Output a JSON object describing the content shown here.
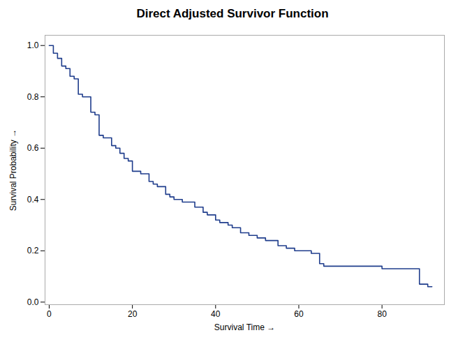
{
  "chart_data": {
    "type": "step",
    "title": "Direct Adjusted Survivor Function",
    "xlabel": "Survival Time",
    "ylabel": "Survival Probability",
    "color": "#1f3d8c",
    "x": [
      0,
      1,
      2,
      3,
      4,
      5,
      6,
      7,
      8,
      10,
      11,
      12,
      13,
      15,
      16,
      17,
      18,
      19,
      20,
      22,
      24,
      25,
      26,
      28,
      29,
      30,
      32,
      35,
      37,
      38,
      40,
      41,
      43,
      44,
      46,
      48,
      50,
      52,
      55,
      57,
      59,
      61,
      63,
      65,
      66,
      70,
      71,
      75,
      80,
      88,
      89,
      91,
      92
    ],
    "values": [
      1.0,
      0.97,
      0.95,
      0.92,
      0.91,
      0.88,
      0.87,
      0.81,
      0.8,
      0.74,
      0.73,
      0.65,
      0.64,
      0.61,
      0.6,
      0.58,
      0.56,
      0.55,
      0.51,
      0.5,
      0.47,
      0.46,
      0.45,
      0.42,
      0.41,
      0.4,
      0.39,
      0.37,
      0.35,
      0.34,
      0.32,
      0.31,
      0.3,
      0.29,
      0.27,
      0.26,
      0.25,
      0.24,
      0.22,
      0.21,
      0.2,
      0.2,
      0.19,
      0.15,
      0.14,
      0.14,
      0.14,
      0.14,
      0.13,
      0.13,
      0.07,
      0.06,
      0.06
    ],
    "xlim": [
      -1,
      95
    ],
    "ylim": [
      -0.01,
      1.04
    ],
    "xticks": [
      0,
      20,
      40,
      60,
      80
    ],
    "yticks": [
      {
        "value": 0.0,
        "label": "0.0"
      },
      0.2,
      0.4,
      0.6,
      0.8,
      {
        "value": 1.0,
        "label": "1.0"
      }
    ],
    "grid": false
  }
}
